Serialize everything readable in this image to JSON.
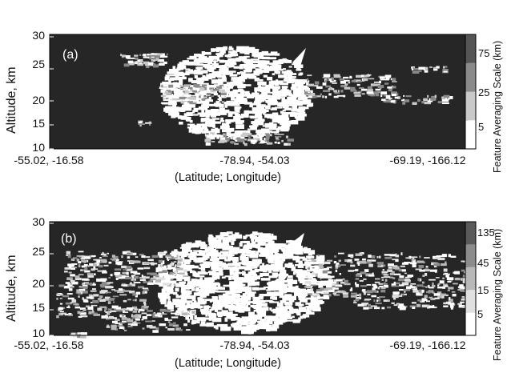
{
  "chart_data": [
    {
      "type": "heatmap",
      "panel_label": "(a)",
      "ylabel": "Altitude, km",
      "xlabel": "(Latitude; Longitude)",
      "yticks": [
        "10",
        "15",
        "20",
        "25",
        "30"
      ],
      "ylim": [
        10,
        30
      ],
      "xticks": [
        "-55.02, -16.58",
        "-78.94, -54.03",
        "-69.19, -166.12"
      ],
      "colorbar": {
        "label": "Feature Averaging Scale (km)",
        "ticks": [
          "5",
          "25",
          "75"
        ],
        "levels": [
          "#ffffff",
          "#c9c9c9",
          "#8a8a8a",
          "#555555"
        ]
      },
      "background": "#262626"
    },
    {
      "type": "heatmap",
      "panel_label": "(b)",
      "ylabel": "Altitude, km",
      "xlabel": "(Latitude; Longitude)",
      "yticks": [
        "10",
        "15",
        "20",
        "25",
        "30"
      ],
      "ylim": [
        10,
        30
      ],
      "xticks": [
        "-55.02, -16.58",
        "-78.94, -54.03",
        "-69.19, -166.12"
      ],
      "colorbar": {
        "label": "Feature Averaging Scale (km)",
        "ticks": [
          "5",
          "15",
          "45",
          "135"
        ],
        "levels": [
          "#ffffff",
          "#e0e0e0",
          "#b8b8b8",
          "#8c8c8c",
          "#5a5a5a"
        ]
      },
      "background": "#262626"
    }
  ]
}
